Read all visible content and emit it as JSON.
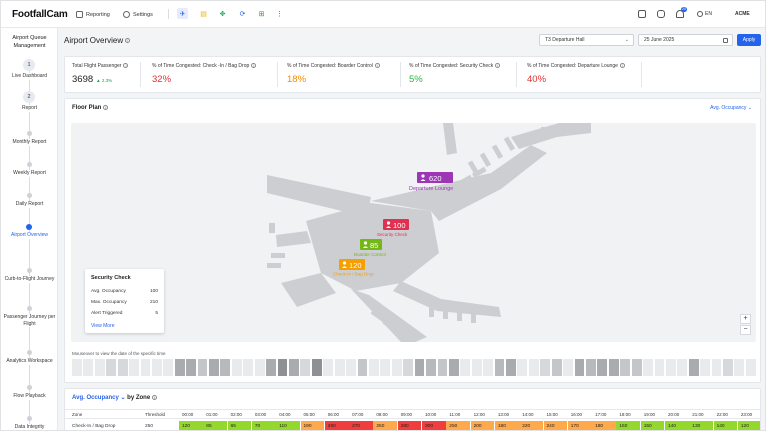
{
  "app": {
    "logo": "FootfallCam",
    "nav": [
      {
        "label": "Reporting",
        "icon": "report-icon"
      },
      {
        "label": "Settings",
        "icon": "gear-icon"
      }
    ],
    "toolbar_icons": [
      {
        "name": "airplane-icon",
        "glyph": "✈",
        "color": "#2563eb",
        "bg": "#e6ecfb"
      },
      {
        "name": "note-icon",
        "glyph": "▤",
        "color": "#eab308",
        "bg": "#ffffff"
      },
      {
        "name": "puzzle-icon",
        "glyph": "✥",
        "color": "#16a34a",
        "bg": "#ffffff"
      },
      {
        "name": "sync-icon",
        "glyph": "⟳",
        "color": "#2563eb",
        "bg": "#ffffff"
      },
      {
        "name": "add-app-icon",
        "glyph": "⊞",
        "color": "#16a34a",
        "bg": "#ffffff"
      },
      {
        "name": "more-icon",
        "glyph": "⋮",
        "color": "#555555",
        "bg": "#ffffff"
      }
    ],
    "notification_count": "20",
    "language": "EN",
    "account": "ACME"
  },
  "sidebar": {
    "title": "Airport Queue Management",
    "steps": [
      {
        "type": "circle",
        "num": "1",
        "label": "Live Dashboard"
      },
      {
        "type": "circle",
        "num": "2",
        "label": "Report"
      },
      {
        "type": "dot",
        "label": "Monthly Report"
      },
      {
        "type": "dot",
        "label": "Weekly Report"
      },
      {
        "type": "dot",
        "label": "Daily Report"
      },
      {
        "type": "dot",
        "label": "Airport Overview",
        "active": true
      },
      {
        "type": "dot",
        "label": "Curb-to-Flight Journey"
      },
      {
        "type": "dot",
        "label": "Passenger Journey per Flight"
      },
      {
        "type": "dot",
        "label": "Analytics Workspace"
      },
      {
        "type": "dot",
        "label": "Flow Playback"
      },
      {
        "type": "dot",
        "label": "Data Integrity"
      }
    ]
  },
  "page": {
    "title": "Airport Overview",
    "hall_select": "T3 Departure Hall",
    "date": "25 June 2025",
    "apply_label": "Apply"
  },
  "kpis": [
    {
      "label": "Total Flight Passenger",
      "value": "3698",
      "trend": "▲ 2.3%",
      "color": "#222222"
    },
    {
      "label": "% of Time Congested: Check -In / Bag Drop",
      "value": "32%",
      "color": "#e03131"
    },
    {
      "label": "% of Time Congested: Boarder Control",
      "value": "18%",
      "color": "#f08c00"
    },
    {
      "label": "% of Time Congested: Security Check",
      "value": "5%",
      "color": "#2fb344"
    },
    {
      "label": "% of Time Congested: Departure Lounge",
      "value": "40%",
      "color": "#e03131"
    }
  ],
  "floor_plan": {
    "title": "Floor Plan",
    "metric_select": "Avg. Occupancy",
    "markers": [
      {
        "zone": "Departure Lounge",
        "value": "620",
        "color": "#9c36b5"
      },
      {
        "zone": "Security Check",
        "value": "100",
        "color": "#e03151"
      },
      {
        "zone": "Boarder Control",
        "value": "85",
        "color": "#74b816"
      },
      {
        "zone": "Check-In / Bag Drop",
        "value": "120",
        "color": "#f59f00"
      }
    ],
    "tooltip": {
      "title": "Security Check",
      "rows": [
        {
          "label": "Avg. Occupancy",
          "value": "100"
        },
        {
          "label": "Max. Occupancy",
          "value": "210"
        },
        {
          "label": "Alert Triggered",
          "value": "5"
        }
      ],
      "link": "View More"
    },
    "zoom_in": "+",
    "zoom_out": "−",
    "timeline_hint": "Mouseover to view the date of the specific time",
    "timeline_shades": [
      "#e9eaec",
      "#e9eaec",
      "#e9eaec",
      "#d7d8db",
      "#d7d8db",
      "#e9eaec",
      "#e9eaec",
      "#e9eaec",
      "#e9eaec",
      "#a9abae",
      "#a9abae",
      "#c4c6c9",
      "#a9abae",
      "#b7b9bc",
      "#e9eaec",
      "#e9eaec",
      "#e9eaec",
      "#a9abae",
      "#8e9093",
      "#a9abae",
      "#d7d8db",
      "#8e9093",
      "#e9eaec",
      "#e9eaec",
      "#e9eaec",
      "#c4c6c9",
      "#e9eaec",
      "#e9eaec",
      "#e9eaec",
      "#d7d8db",
      "#a9abae",
      "#b7b9bc",
      "#c4c6c9",
      "#a9abae",
      "#e9eaec",
      "#e9eaec",
      "#e9eaec",
      "#b7b9bc",
      "#a9abae",
      "#e9eaec",
      "#e9eaec",
      "#d7d8db",
      "#c4c6c9",
      "#e9eaec",
      "#a9abae",
      "#b7b9bc",
      "#a9abae",
      "#a9abae",
      "#c4c6c9",
      "#c4c6c9",
      "#e9eaec",
      "#e9eaec",
      "#e9eaec",
      "#e9eaec",
      "#a9abae",
      "#e9eaec",
      "#e9eaec",
      "#d7d8db",
      "#e9eaec",
      "#e9eaec"
    ]
  },
  "occupancy_table": {
    "title_metric": "Avg. Occupancy",
    "title_suffix": "by Zone",
    "col_zone": "Zone",
    "col_threshold": "Threshold",
    "hours": [
      "00:00",
      "01:00",
      "02:00",
      "03:00",
      "04:00",
      "05:00",
      "06:00",
      "07:00",
      "08:00",
      "09:00",
      "10:00",
      "11:00",
      "12:00",
      "13:00",
      "14:00",
      "15:00",
      "16:00",
      "17:00",
      "18:00",
      "19:00",
      "20:00",
      "21:00",
      "22:00",
      "23:00"
    ],
    "rows": [
      {
        "zone": "Check-In / Bag Drop",
        "threshold": "250",
        "values": [
          "120",
          "85",
          "65",
          "70",
          "110",
          "190",
          "260",
          "270",
          "250",
          "280",
          "300",
          "250",
          "200",
          "180",
          "220",
          "240",
          "170",
          "180",
          "160",
          "150",
          "140",
          "130",
          "140",
          "120"
        ],
        "colors": [
          "#94d82d",
          "#94d82d",
          "#94d82d",
          "#94d82d",
          "#94d82d",
          "#ffa94d",
          "#f03e3e",
          "#f03e3e",
          "#ffa94d",
          "#f03e3e",
          "#f03e3e",
          "#ffa94d",
          "#ffa94d",
          "#ffa94d",
          "#ffa94d",
          "#ffa94d",
          "#ffa94d",
          "#ffa94d",
          "#94d82d",
          "#94d82d",
          "#94d82d",
          "#94d82d",
          "#94d82d",
          "#94d82d"
        ]
      }
    ]
  }
}
